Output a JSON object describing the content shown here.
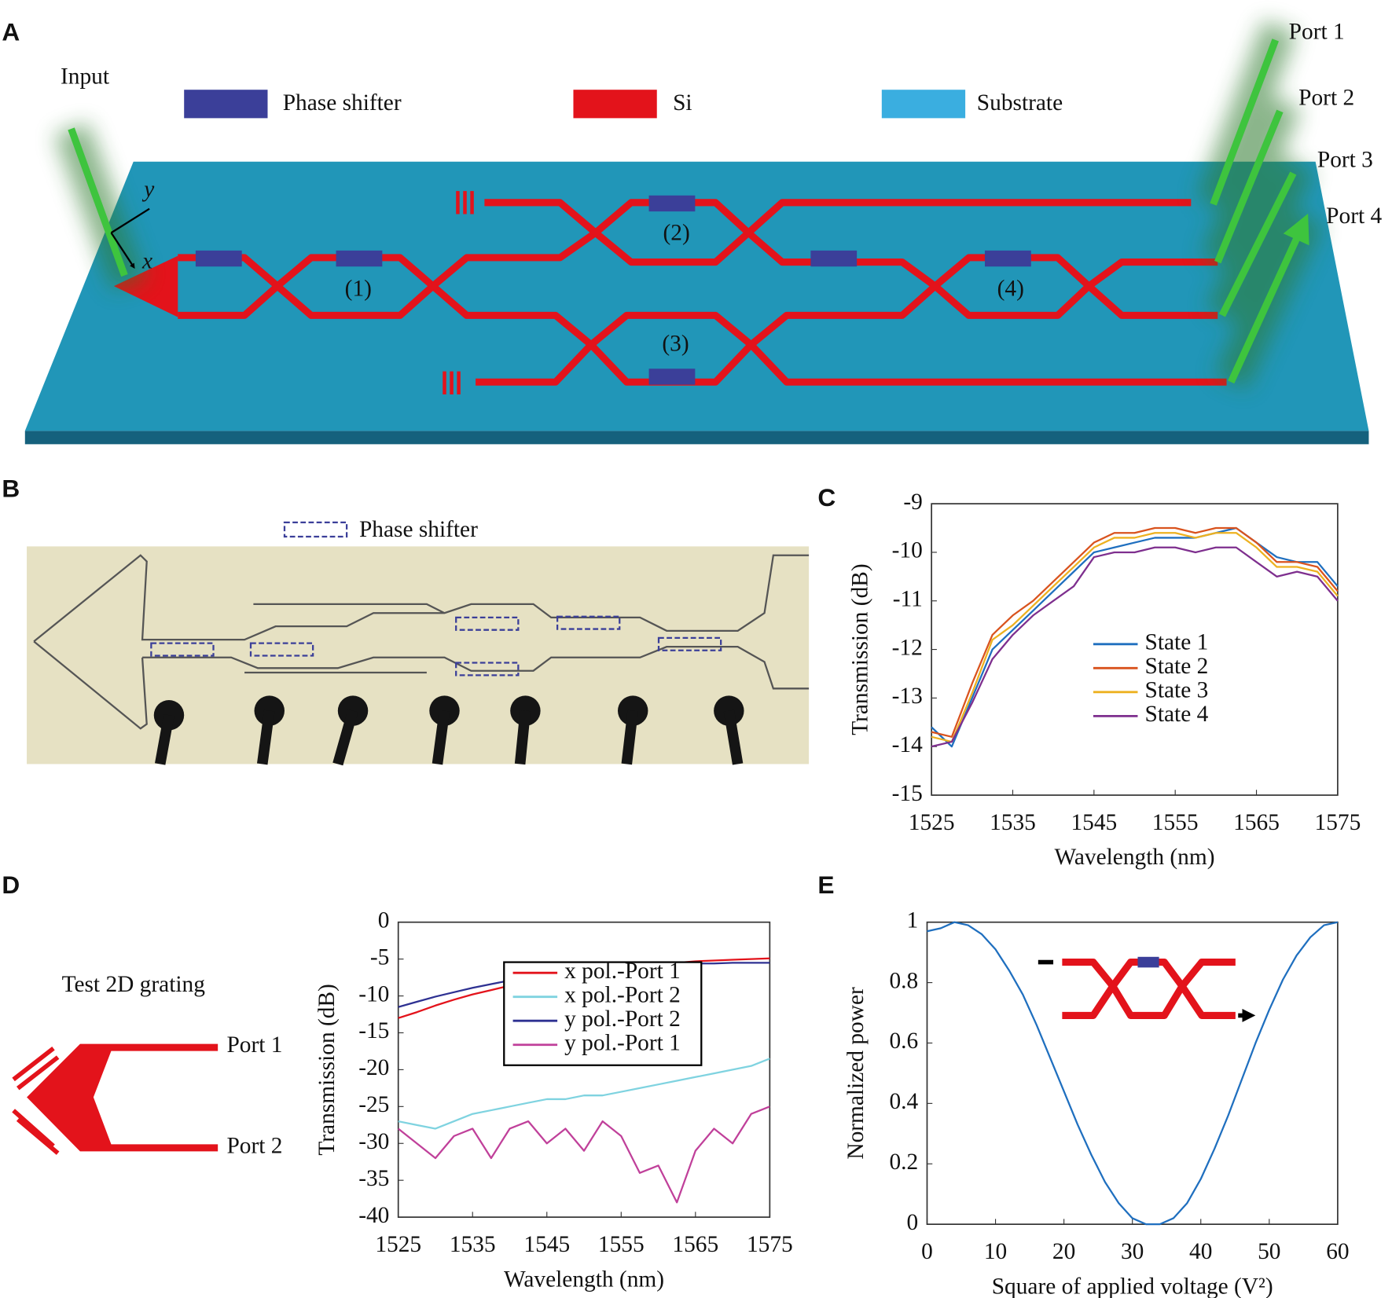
{
  "panel_letters": [
    "A",
    "B",
    "C",
    "D",
    "E"
  ],
  "panel_a": {
    "legend": [
      "Phase shifter",
      "Si",
      "Substrate"
    ],
    "input": "Input",
    "ports": [
      "Port 1",
      "Port 2",
      "Port 3",
      "Port 4"
    ],
    "shifters": [
      "(1)",
      "(2)",
      "(3)",
      "(4)"
    ],
    "axes": [
      "y",
      "x"
    ]
  },
  "panel_b": {
    "legend": "Phase shifter"
  },
  "panel_d_inset": {
    "title": "Test 2D grating",
    "ports": [
      "Port 1",
      "Port 2"
    ]
  },
  "chart_data": [
    {
      "type": "line",
      "xlabel": "Wavelength (nm)",
      "ylabel": "Transmission (dB)",
      "x": [
        1525,
        1527.5,
        1530,
        1532.5,
        1535,
        1537.5,
        1540,
        1542.5,
        1545,
        1547.5,
        1550,
        1552.5,
        1555,
        1557.5,
        1560,
        1562.5,
        1565,
        1567.5,
        1570,
        1572.5,
        1575
      ],
      "series": [
        {
          "name": "State 1",
          "color": "#1f6fbf",
          "values": [
            -13.6,
            -14.0,
            -13.0,
            -12.0,
            -11.6,
            -11.2,
            -10.8,
            -10.4,
            -10.0,
            -9.9,
            -9.8,
            -9.7,
            -9.7,
            -9.7,
            -9.6,
            -9.5,
            -9.8,
            -10.1,
            -10.2,
            -10.2,
            -10.7
          ]
        },
        {
          "name": "State 2",
          "color": "#d9531e",
          "values": [
            -13.7,
            -13.8,
            -12.7,
            -11.7,
            -11.3,
            -11.0,
            -10.6,
            -10.2,
            -9.8,
            -9.6,
            -9.6,
            -9.5,
            -9.5,
            -9.6,
            -9.5,
            -9.5,
            -9.8,
            -10.2,
            -10.2,
            -10.3,
            -10.8
          ]
        },
        {
          "name": "State 3",
          "color": "#edb120",
          "values": [
            -13.8,
            -13.9,
            -12.9,
            -11.8,
            -11.5,
            -11.1,
            -10.7,
            -10.3,
            -9.9,
            -9.7,
            -9.7,
            -9.6,
            -9.6,
            -9.7,
            -9.6,
            -9.6,
            -9.9,
            -10.3,
            -10.3,
            -10.4,
            -10.9
          ]
        },
        {
          "name": "State 4",
          "color": "#7e2f8e",
          "values": [
            -14.0,
            -13.9,
            -13.1,
            -12.2,
            -11.7,
            -11.3,
            -11.0,
            -10.7,
            -10.1,
            -10.0,
            -10.0,
            -9.9,
            -9.9,
            -10.0,
            -9.9,
            -9.9,
            -10.2,
            -10.5,
            -10.4,
            -10.5,
            -11.0
          ]
        }
      ],
      "xlim": [
        1525,
        1575
      ],
      "xticks": [
        1525,
        1535,
        1545,
        1555,
        1565,
        1575
      ],
      "ylim": [
        -15,
        -9
      ],
      "yticks": [
        -15,
        -14,
        -13,
        -12,
        -11,
        -10,
        -9
      ],
      "legend": "lower right",
      "legend_frame": false
    },
    {
      "type": "line",
      "xlabel": "Wavelength (nm)",
      "ylabel": "Transmission (dB)",
      "x": [
        1525,
        1527.5,
        1530,
        1532.5,
        1535,
        1537.5,
        1540,
        1542.5,
        1545,
        1547.5,
        1550,
        1552.5,
        1555,
        1557.5,
        1560,
        1562.5,
        1565,
        1567.5,
        1570,
        1572.5,
        1575
      ],
      "series": [
        {
          "name": "x pol.-Port 1",
          "color": "#e3131b",
          "values": [
            -13,
            -12.2,
            -11.3,
            -10.5,
            -9.8,
            -9.2,
            -8.6,
            -8.1,
            -7.6,
            -7.2,
            -6.8,
            -6.5,
            -6.2,
            -5.9,
            -5.7,
            -5.5,
            -5.3,
            -5.2,
            -5.1,
            -5.0,
            -4.9
          ]
        },
        {
          "name": "x pol.-Port 2",
          "color": "#7fd3e0",
          "values": [
            -27,
            -27.5,
            -28,
            -27,
            -26,
            -25.5,
            -25,
            -24.5,
            -24,
            -24,
            -23.5,
            -23.5,
            -23,
            -22.5,
            -22,
            -21.5,
            -21,
            -20.5,
            -20,
            -19.5,
            -18.5
          ]
        },
        {
          "name": "y pol.-Port 2",
          "color": "#2e3192",
          "values": [
            -11.5,
            -10.8,
            -10.1,
            -9.5,
            -8.9,
            -8.4,
            -7.9,
            -7.5,
            -7.1,
            -6.8,
            -6.5,
            -6.3,
            -6.1,
            -5.9,
            -5.8,
            -5.7,
            -5.6,
            -5.6,
            -5.5,
            -5.5,
            -5.5
          ]
        },
        {
          "name": "y pol.-Port 1",
          "color": "#c0409a",
          "values": [
            -28,
            -30,
            -32,
            -29,
            -28,
            -32,
            -28,
            -27,
            -30,
            -28,
            -31,
            -27,
            -29,
            -34,
            -33,
            -38,
            -31,
            -28,
            -30,
            -26,
            -25
          ]
        }
      ],
      "xlim": [
        1525,
        1575
      ],
      "xticks": [
        1525,
        1535,
        1545,
        1555,
        1565,
        1575
      ],
      "ylim": [
        -40,
        0
      ],
      "yticks": [
        -40,
        -35,
        -30,
        -25,
        -20,
        -15,
        -10,
        -5,
        0
      ],
      "legend": "upper center",
      "legend_frame": true
    },
    {
      "type": "line",
      "xlabel": "Square of applied voltage (V²)",
      "ylabel": "Normalized power",
      "color": "#1f6fbf",
      "x": [
        0,
        2,
        4,
        6,
        8,
        10,
        12,
        14,
        16,
        18,
        20,
        22,
        24,
        26,
        28,
        30,
        32,
        34,
        36,
        38,
        40,
        42,
        44,
        46,
        48,
        50,
        52,
        54,
        56,
        58,
        60
      ],
      "values": [
        0.97,
        0.98,
        1.0,
        0.99,
        0.96,
        0.91,
        0.84,
        0.76,
        0.66,
        0.55,
        0.44,
        0.33,
        0.23,
        0.14,
        0.07,
        0.02,
        0.0,
        0.0,
        0.02,
        0.07,
        0.15,
        0.25,
        0.36,
        0.48,
        0.6,
        0.71,
        0.81,
        0.89,
        0.95,
        0.99,
        1.0
      ],
      "xlim": [
        0,
        60
      ],
      "xticks": [
        0,
        10,
        20,
        30,
        40,
        50,
        60
      ],
      "ylim": [
        0,
        1
      ],
      "yticks": [
        0,
        0.2,
        0.4,
        0.6,
        0.8,
        1
      ]
    }
  ]
}
